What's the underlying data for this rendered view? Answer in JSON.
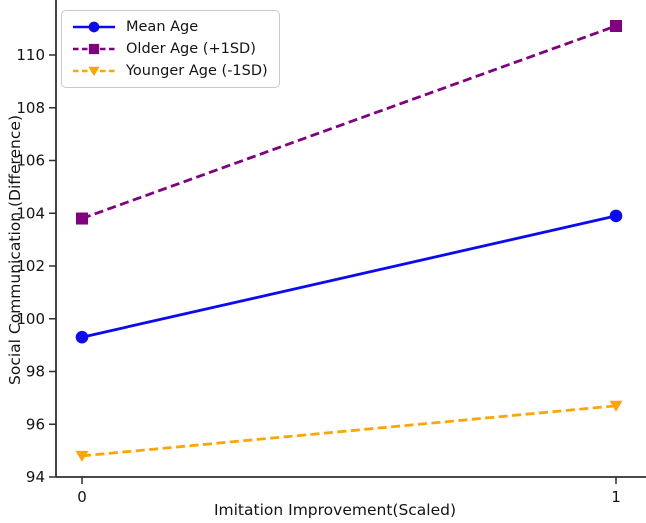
{
  "figure": {
    "background": "#ffffff",
    "axis_color": "#2f2f2f",
    "text_color": "#141414",
    "legend_border_color": "#c9c9c9"
  },
  "chart_data": {
    "type": "line",
    "title": "",
    "xlabel": "Imitation Improvement(Scaled)",
    "ylabel": "Social Communication (Difference)",
    "x": [
      0,
      1
    ],
    "xticks": [
      "0",
      "1"
    ],
    "yticks": [
      94,
      96,
      98,
      100,
      102,
      104,
      106,
      108,
      110
    ],
    "ylim": [
      94,
      112
    ],
    "xlim": [
      -0.05,
      1.06
    ],
    "grid": false,
    "legend_position": "upper left",
    "series": [
      {
        "name": "Mean Age",
        "values": [
          99.3,
          103.9
        ],
        "color": "#0b0bee",
        "line_style": "solid",
        "marker": "circle"
      },
      {
        "name": "Older Age (+1SD)",
        "values": [
          103.8,
          111.1
        ],
        "color": "#800080",
        "line_style": "dashed",
        "marker": "square"
      },
      {
        "name": "Younger Age (-1SD)",
        "values": [
          94.8,
          96.7
        ],
        "color": "#ffa500",
        "line_style": "dashed",
        "marker": "triangle-down"
      }
    ]
  }
}
